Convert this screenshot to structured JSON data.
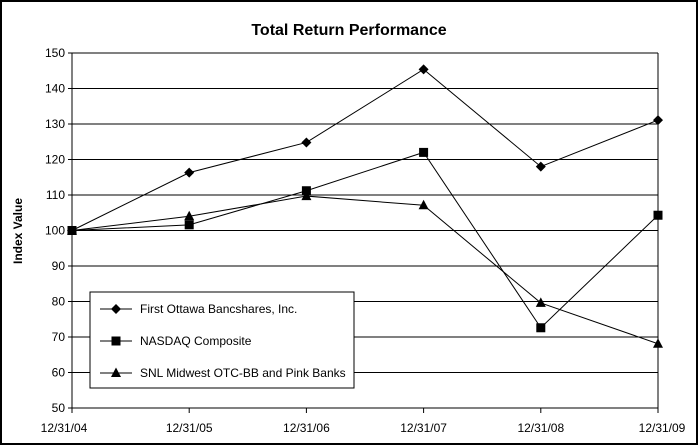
{
  "chart_data": {
    "type": "line",
    "title": "Total Return Performance",
    "xlabel": "",
    "ylabel": "Index Value",
    "categories": [
      "12/31/04",
      "12/31/05",
      "12/31/06",
      "12/31/07",
      "12/31/08",
      "12/31/09"
    ],
    "ylim": [
      50,
      150
    ],
    "yticks": [
      50,
      60,
      70,
      80,
      90,
      100,
      110,
      120,
      130,
      140,
      150
    ],
    "grid": true,
    "legend_position": "bottom-left",
    "series": [
      {
        "name": "First Ottawa Bancshares, Inc.",
        "marker": "diamond",
        "values": [
          100,
          116.3,
          124.8,
          145.4,
          118.0,
          131.1
        ]
      },
      {
        "name": "NASDAQ Composite",
        "marker": "square",
        "values": [
          100,
          101.6,
          111.2,
          122.0,
          72.6,
          104.3
        ]
      },
      {
        "name": "SNL Midwest OTC-BB and Pink Banks",
        "marker": "triangle",
        "values": [
          100,
          104.0,
          109.7,
          107.1,
          79.6,
          68.1
        ]
      }
    ],
    "colors": {
      "line": "#000000",
      "grid": "#000000",
      "background": "#ffffff"
    }
  }
}
